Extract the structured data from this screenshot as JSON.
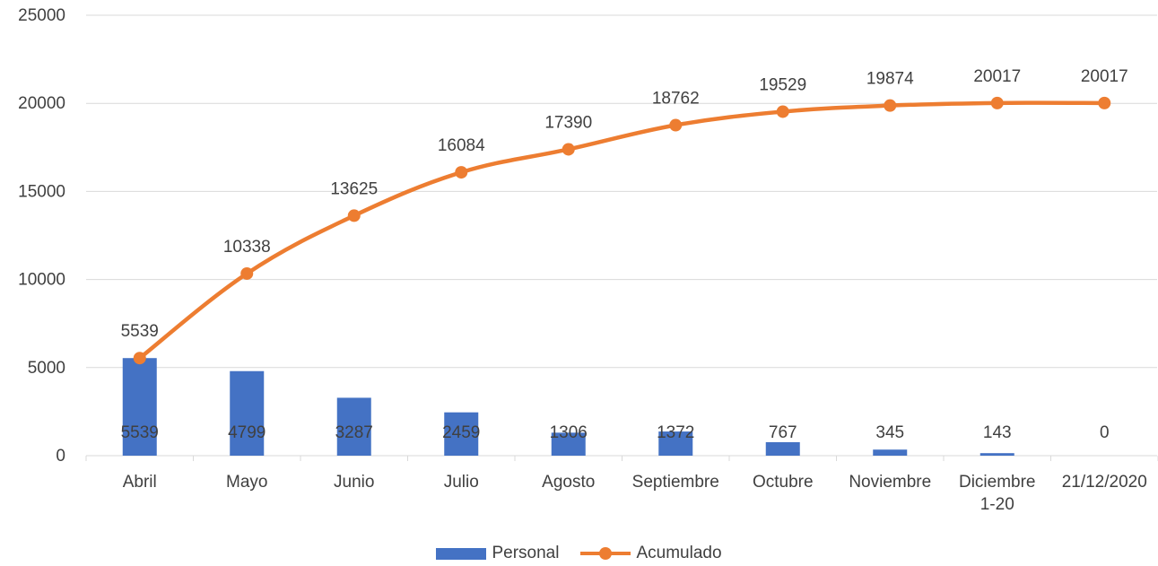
{
  "chart_data": {
    "type": "bar",
    "categories": [
      "Abril",
      "Mayo",
      "Junio",
      "Julio",
      "Agosto",
      "Septiembre",
      "Octubre",
      "Noviembre",
      "Diciembre 1-20",
      "21/12/2020"
    ],
    "series": [
      {
        "name": "Personal",
        "type": "bar",
        "color": "#4472C4",
        "values": [
          5539,
          4799,
          3287,
          2459,
          1306,
          1372,
          767,
          345,
          143,
          0
        ]
      },
      {
        "name": "Acumulado",
        "type": "line",
        "color": "#ED7D31",
        "values": [
          5539,
          10338,
          13625,
          16084,
          17390,
          18762,
          19529,
          19874,
          20017,
          20017
        ]
      }
    ],
    "yticks": [
      "0",
      "5000",
      "10000",
      "15000",
      "20000",
      "25000"
    ],
    "ylim": [
      0,
      25000
    ],
    "grid": true,
    "legend": "bottom",
    "title": "",
    "xlabel": "",
    "ylabel": ""
  },
  "legend": {
    "personal_label": "Personal",
    "acumulado_label": "Acumulado"
  }
}
